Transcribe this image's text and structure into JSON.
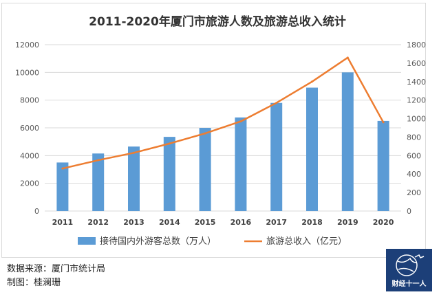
{
  "chart_data": {
    "type": "bar+line",
    "title": "2011-2020年厦门市旅游人数及旅游总收入统计",
    "categories": [
      "2011",
      "2012",
      "2013",
      "2014",
      "2015",
      "2016",
      "2017",
      "2018",
      "2019",
      "2020"
    ],
    "series": [
      {
        "name": "接待国内外游客总数（万人）",
        "type": "bar",
        "axis": "left",
        "color": "#5b9bd5",
        "values": [
          3500,
          4150,
          4650,
          5350,
          6000,
          6750,
          7800,
          8900,
          10000,
          6500
        ]
      },
      {
        "name": "旅游总收入（亿元）",
        "type": "line",
        "axis": "right",
        "color": "#ed7d31",
        "values": [
          460,
          550,
          630,
          730,
          840,
          970,
          1170,
          1400,
          1660,
          960
        ]
      }
    ],
    "y_left": {
      "min": 0,
      "max": 12000,
      "step": 2000,
      "ticks": [
        "0",
        "2000",
        "4000",
        "6000",
        "8000",
        "10000",
        "12000"
      ]
    },
    "y_right": {
      "min": 0,
      "max": 1800,
      "step": 200,
      "ticks": [
        "0",
        "200",
        "400",
        "600",
        "800",
        "1000",
        "1200",
        "1400",
        "1600",
        "1800"
      ]
    },
    "grid": true,
    "legend_position": "bottom"
  },
  "footer": {
    "source": "数据来源：厦门市统计局",
    "author": "制图：桂澜珊"
  },
  "logo": {
    "text": "财经十一人"
  }
}
